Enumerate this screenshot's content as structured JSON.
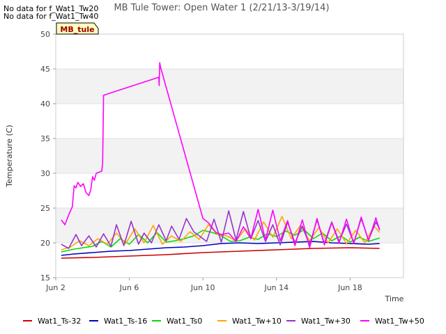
{
  "notices": [
    "No data for f_Wat1_Tw20",
    "No data for f_Wat1_Tw40"
  ],
  "station_badge": "MB_tule",
  "chart_data": {
    "type": "line",
    "title": "MB Tule Tower: Open Water 1 (2/21/13-3/19/14)",
    "xlabel": "Time",
    "ylabel": "Temperature (C)",
    "xlim": [
      0,
      18.9
    ],
    "ylim": [
      15,
      50
    ],
    "x_ticks": [
      {
        "value": 0,
        "label": "Jun 2"
      },
      {
        "value": 4,
        "label": "Jun 6"
      },
      {
        "value": 8,
        "label": "Jun 10"
      },
      {
        "value": 12,
        "label": "Jun 14"
      },
      {
        "value": 16,
        "label": "Jun 18"
      }
    ],
    "y_ticks": [
      15,
      20,
      25,
      30,
      35,
      40,
      45,
      50
    ],
    "shaded_bands": [
      [
        20,
        25
      ],
      [
        30,
        35
      ],
      [
        40,
        45
      ]
    ],
    "x_unit": "days since Jun 2",
    "series": [
      {
        "name": "Wat1_Ts-32",
        "color": "#cc0000",
        "x": [
          0.3,
          2,
          4,
          6,
          8,
          10,
          12,
          14,
          16,
          17.6
        ],
        "y": [
          17.8,
          17.9,
          18.1,
          18.3,
          18.6,
          18.8,
          19.0,
          19.2,
          19.3,
          19.2
        ]
      },
      {
        "name": "Wat1_Ts-16",
        "color": "#0000bb",
        "x": [
          0.3,
          1,
          2,
          3,
          4,
          5,
          6,
          7,
          8,
          9,
          10,
          11,
          12,
          13,
          14,
          15,
          16,
          17,
          17.6
        ],
        "y": [
          18.2,
          18.4,
          18.6,
          18.8,
          18.9,
          19.1,
          19.3,
          19.4,
          19.6,
          19.9,
          20.0,
          19.9,
          20.0,
          20.1,
          20.2,
          20.0,
          19.9,
          19.8,
          19.9
        ]
      },
      {
        "name": "Wat1_Ts0",
        "color": "#00dd00",
        "x": [
          0.3,
          1,
          2,
          2.5,
          3,
          3.5,
          4,
          4.5,
          5,
          5.5,
          6,
          6.5,
          7,
          7.5,
          8,
          8.5,
          9,
          9.5,
          10,
          10.5,
          11,
          11.5,
          12,
          12.5,
          13,
          13.5,
          14,
          14.5,
          15,
          15.5,
          16,
          16.5,
          17,
          17.6
        ],
        "y": [
          18.7,
          19.1,
          19.5,
          20.2,
          19.4,
          20.6,
          19.8,
          21.2,
          20.0,
          21.5,
          20.1,
          20.3,
          20.6,
          21.0,
          21.8,
          21.5,
          21.0,
          20.2,
          20.3,
          20.8,
          20.5,
          21.3,
          20.9,
          21.7,
          21.1,
          21.9,
          20.6,
          21.4,
          20.3,
          21.0,
          20.1,
          20.8,
          20.2,
          20.7
        ]
      },
      {
        "name": "Wat1_Tw+10",
        "color": "#ffa500",
        "x": [
          0.3,
          0.8,
          1.3,
          1.8,
          2.3,
          2.8,
          3.3,
          3.8,
          4.3,
          4.8,
          5.3,
          5.8,
          6.3,
          6.8,
          7.3,
          7.8,
          8.3,
          8.8,
          9.3,
          9.8,
          10.3,
          10.8,
          11.3,
          11.8,
          12.3,
          12.8,
          13.3,
          13.8,
          14.3,
          14.8,
          15.3,
          15.8,
          16.3,
          16.8,
          17.3,
          17.6
        ],
        "y": [
          19.0,
          19.4,
          20.3,
          19.6,
          20.6,
          19.8,
          21.4,
          19.9,
          22.0,
          20.0,
          22.5,
          19.8,
          21.0,
          20.2,
          21.6,
          20.5,
          22.6,
          21.2,
          21.0,
          20.3,
          22.0,
          20.4,
          23.0,
          20.8,
          23.8,
          20.6,
          22.5,
          20.3,
          22.2,
          20.0,
          22.0,
          19.9,
          21.8,
          20.0,
          22.4,
          21.5
        ]
      },
      {
        "name": "Wat1_Tw+30",
        "color": "#9932cc",
        "x": [
          0.3,
          0.7,
          1.1,
          1.4,
          1.8,
          2.2,
          2.6,
          3.0,
          3.3,
          3.7,
          4.1,
          4.5,
          4.8,
          5.2,
          5.6,
          6.0,
          6.3,
          6.7,
          7.1,
          7.5,
          7.8,
          8.2,
          8.6,
          9.0,
          9.4,
          9.8,
          10.2,
          10.6,
          11.0,
          11.4,
          11.8,
          12.2,
          12.6,
          13.0,
          13.4,
          13.8,
          14.2,
          14.6,
          15.0,
          15.4,
          15.8,
          16.2,
          16.6,
          17.0,
          17.4,
          17.6
        ],
        "y": [
          19.8,
          19.2,
          21.2,
          19.6,
          21.0,
          19.4,
          21.3,
          19.5,
          22.6,
          19.6,
          23.1,
          19.8,
          21.4,
          20.0,
          22.6,
          20.3,
          22.4,
          20.5,
          23.5,
          21.6,
          21.0,
          20.2,
          23.4,
          20.1,
          24.6,
          20.4,
          24.5,
          20.6,
          23.2,
          20.2,
          22.6,
          19.7,
          23.0,
          20.0,
          22.4,
          19.7,
          23.3,
          19.9,
          23.0,
          20.2,
          22.7,
          20.0,
          23.5,
          20.4,
          23.0,
          22.0
        ]
      },
      {
        "name": "Wat1_Tw+50",
        "color": "#ff00ff",
        "x": [
          0.3,
          0.5,
          0.7,
          0.9,
          1.0,
          1.1,
          1.2,
          1.35,
          1.5,
          1.65,
          1.8,
          1.9,
          2.0,
          2.1,
          2.2,
          2.5,
          2.55,
          2.6,
          2.7,
          5.6,
          5.62,
          5.65,
          5.68,
          5.7,
          8.0,
          8.3,
          8.7,
          9.0,
          9.4,
          9.8,
          10.2,
          10.6,
          11.0,
          11.4,
          11.8,
          12.2,
          12.6,
          13.0,
          13.4,
          13.8,
          14.2,
          14.6,
          15.0,
          15.4,
          15.8,
          16.2,
          16.6,
          17.0,
          17.4,
          17.6
        ],
        "y": [
          23.3,
          22.6,
          24.0,
          25.2,
          28.2,
          27.9,
          28.7,
          28.1,
          28.5,
          27.2,
          26.8,
          27.6,
          29.5,
          29.0,
          30.0,
          30.3,
          31.5,
          41.2,
          41.3,
          43.8,
          42.6,
          45.9,
          45.4,
          45.2,
          23.5,
          22.9,
          21.5,
          21.2,
          21.4,
          20.2,
          22.3,
          20.6,
          24.8,
          20.4,
          24.7,
          20.3,
          23.2,
          19.6,
          23.3,
          19.3,
          23.5,
          19.7,
          22.9,
          20.0,
          23.4,
          19.9,
          23.7,
          20.3,
          23.6,
          21.8
        ]
      }
    ]
  }
}
